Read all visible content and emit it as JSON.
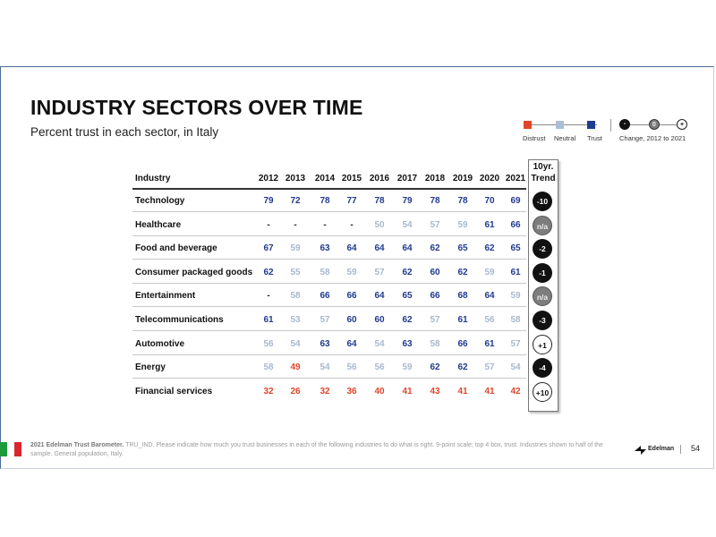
{
  "header": {
    "title": "INDUSTRY SECTORS OVER TIME",
    "subtitle": "Percent trust in each sector, in Italy"
  },
  "legend": {
    "distrust": "Distrust",
    "neutral": "Neutral",
    "trust": "Trust",
    "change": "Change, 2012 to 2021",
    "dot_labels": [
      "-",
      "0",
      "+"
    ],
    "colors": {
      "distrust": "#e0452b",
      "neutral": "#a9c0d6",
      "trust": "#1f3a8f"
    }
  },
  "table": {
    "industry_header": "Industry",
    "years": [
      "2012",
      "2013",
      "2014",
      "2015",
      "2016",
      "2017",
      "2018",
      "2019",
      "2020",
      "2021"
    ],
    "trend_header_1": "10yr.",
    "trend_header_2": "Trend",
    "rows": [
      {
        "label": "Technology",
        "values": [
          "79",
          "72",
          "78",
          "77",
          "78",
          "79",
          "78",
          "78",
          "70",
          "69"
        ],
        "levels": [
          "t",
          "t",
          "t",
          "t",
          "t",
          "t",
          "t",
          "t",
          "t",
          "t"
        ],
        "trend": "-10",
        "trend_style": "black"
      },
      {
        "label": "Healthcare",
        "values": [
          "-",
          "-",
          "-",
          "-",
          "50",
          "54",
          "57",
          "59",
          "61",
          "66"
        ],
        "levels": [
          "x",
          "x",
          "x",
          "x",
          "n",
          "n",
          "n",
          "n",
          "t",
          "t"
        ],
        "trend": "n/a",
        "trend_style": "gray"
      },
      {
        "label": "Food and beverage",
        "values": [
          "67",
          "59",
          "63",
          "64",
          "64",
          "64",
          "62",
          "65",
          "62",
          "65"
        ],
        "levels": [
          "t",
          "n",
          "t",
          "t",
          "t",
          "t",
          "t",
          "t",
          "t",
          "t"
        ],
        "trend": "-2",
        "trend_style": "black"
      },
      {
        "label": "Consumer packaged goods",
        "values": [
          "62",
          "55",
          "58",
          "59",
          "57",
          "62",
          "60",
          "62",
          "59",
          "61"
        ],
        "levels": [
          "t",
          "n",
          "n",
          "n",
          "n",
          "t",
          "t",
          "t",
          "n",
          "t"
        ],
        "trend": "-1",
        "trend_style": "black"
      },
      {
        "label": "Entertainment",
        "values": [
          "-",
          "58",
          "66",
          "66",
          "64",
          "65",
          "66",
          "68",
          "64",
          "59"
        ],
        "levels": [
          "x",
          "n",
          "t",
          "t",
          "t",
          "t",
          "t",
          "t",
          "t",
          "n"
        ],
        "trend": "n/a",
        "trend_style": "gray"
      },
      {
        "label": "Telecommunications",
        "values": [
          "61",
          "53",
          "57",
          "60",
          "60",
          "62",
          "57",
          "61",
          "56",
          "58"
        ],
        "levels": [
          "t",
          "n",
          "n",
          "t",
          "t",
          "t",
          "n",
          "t",
          "n",
          "n"
        ],
        "trend": "-3",
        "trend_style": "black"
      },
      {
        "label": "Automotive",
        "values": [
          "56",
          "54",
          "63",
          "64",
          "54",
          "63",
          "58",
          "66",
          "61",
          "57"
        ],
        "levels": [
          "n",
          "n",
          "t",
          "t",
          "n",
          "t",
          "n",
          "t",
          "t",
          "n"
        ],
        "trend": "+1",
        "trend_style": "white"
      },
      {
        "label": "Energy",
        "values": [
          "58",
          "49",
          "54",
          "56",
          "56",
          "59",
          "62",
          "62",
          "57",
          "54"
        ],
        "levels": [
          "n",
          "d",
          "n",
          "n",
          "n",
          "n",
          "t",
          "t",
          "n",
          "n"
        ],
        "trend": "-4",
        "trend_style": "black"
      },
      {
        "label": "Financial services",
        "values": [
          "32",
          "26",
          "32",
          "36",
          "40",
          "41",
          "43",
          "41",
          "41",
          "42"
        ],
        "levels": [
          "d",
          "d",
          "d",
          "d",
          "d",
          "d",
          "d",
          "d",
          "d",
          "d"
        ],
        "trend": "+10",
        "trend_style": "white"
      }
    ]
  },
  "footer": {
    "source_bold": "2021 Edelman Trust Barometer.",
    "source_text": " TRU_IND. Please indicate how much you trust businesses in each of the following industries to do what is right. 9-point scale; top 4 box, trust. Industries shown to half of the sample. General population, Italy.",
    "brand": "Edelman",
    "page_number": "54",
    "flag_colors": [
      "#1e9a3c",
      "#ffffff",
      "#d8262e"
    ]
  }
}
